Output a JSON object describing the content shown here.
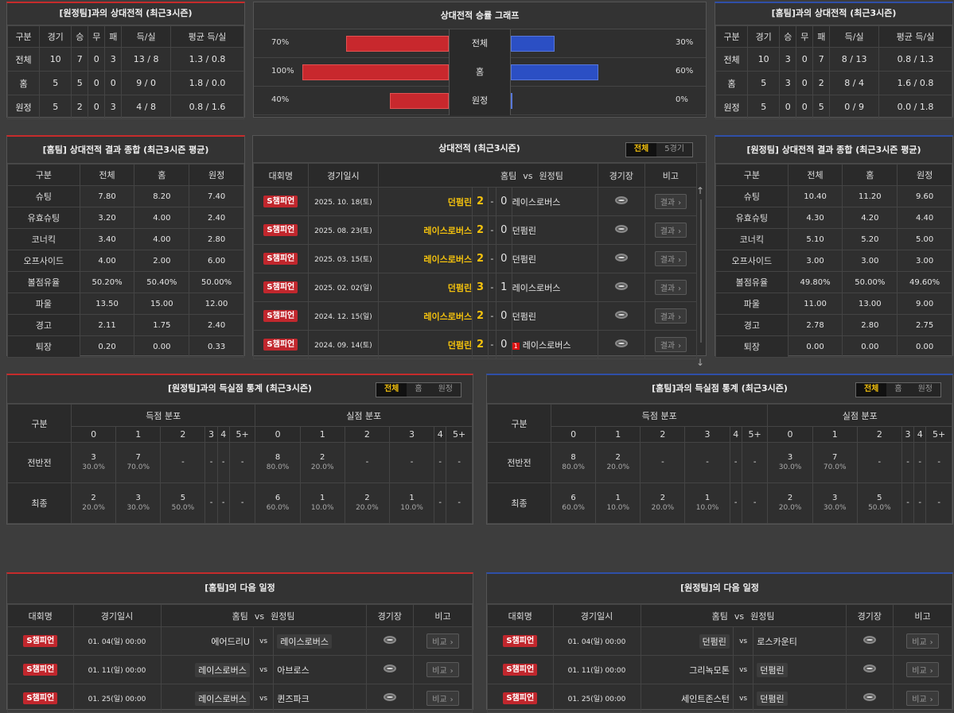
{
  "h2h_home": {
    "title": "[원정팀]과의 상대전적 (최근3시즌)",
    "headers": [
      "구분",
      "경기",
      "승",
      "무",
      "패",
      "득/실",
      "평균 득/실"
    ],
    "rows": [
      [
        "전체",
        "10",
        "7",
        "0",
        "3",
        "13 / 8",
        "1.3 / 0.8"
      ],
      [
        "홈",
        "5",
        "5",
        "0",
        "0",
        "9 / 0",
        "1.8 / 0.0"
      ],
      [
        "원정",
        "5",
        "2",
        "0",
        "3",
        "4 / 8",
        "0.8 / 1.6"
      ]
    ]
  },
  "graph": {
    "title": "상대전적 승률 그래프",
    "rows": [
      {
        "label": "전체",
        "home_pct": "70%",
        "away_pct": "30%",
        "home": 70,
        "away": 30
      },
      {
        "label": "홈",
        "home_pct": "100%",
        "away_pct": "60%",
        "home": 100,
        "away": 60
      },
      {
        "label": "원정",
        "home_pct": "40%",
        "away_pct": "0%",
        "home": 40,
        "away": 0
      }
    ]
  },
  "h2h_away": {
    "title": "[홈팀]과의 상대전적 (최근3시즌)",
    "headers": [
      "구분",
      "경기",
      "승",
      "무",
      "패",
      "득/실",
      "평균 득/실"
    ],
    "rows": [
      [
        "전체",
        "10",
        "3",
        "0",
        "7",
        "8 / 13",
        "0.8 / 1.3"
      ],
      [
        "홈",
        "5",
        "3",
        "0",
        "2",
        "8 / 4",
        "1.6 / 0.8"
      ],
      [
        "원정",
        "5",
        "0",
        "0",
        "5",
        "0 / 9",
        "0.0 / 1.8"
      ]
    ]
  },
  "sum_home": {
    "title": "[홈팀] 상대전적 결과 종합 (최근3시즌 평균)",
    "headers": [
      "구분",
      "전체",
      "홈",
      "원정"
    ],
    "rows": [
      [
        "슈팅",
        "7.80",
        "8.20",
        "7.40"
      ],
      [
        "유효슈팅",
        "3.20",
        "4.00",
        "2.40"
      ],
      [
        "코너킥",
        "3.40",
        "4.00",
        "2.80"
      ],
      [
        "오프사이드",
        "4.00",
        "2.00",
        "6.00"
      ],
      [
        "볼점유율",
        "50.20%",
        "50.40%",
        "50.00%"
      ],
      [
        "파울",
        "13.50",
        "15.00",
        "12.00"
      ],
      [
        "경고",
        "2.11",
        "1.75",
        "2.40"
      ],
      [
        "퇴장",
        "0.20",
        "0.00",
        "0.33"
      ]
    ]
  },
  "sum_away": {
    "title": "[원정팀] 상대전적 결과 종합 (최근3시즌 평균)",
    "headers": [
      "구분",
      "전체",
      "홈",
      "원정"
    ],
    "rows": [
      [
        "슈팅",
        "10.40",
        "11.20",
        "9.60"
      ],
      [
        "유효슈팅",
        "4.30",
        "4.20",
        "4.40"
      ],
      [
        "코너킥",
        "5.10",
        "5.20",
        "5.00"
      ],
      [
        "오프사이드",
        "3.00",
        "3.00",
        "3.00"
      ],
      [
        "볼점유율",
        "49.80%",
        "50.00%",
        "49.60%"
      ],
      [
        "파울",
        "11.00",
        "13.00",
        "9.00"
      ],
      [
        "경고",
        "2.78",
        "2.80",
        "2.75"
      ],
      [
        "퇴장",
        "0.00",
        "0.00",
        "0.00"
      ]
    ]
  },
  "matches": {
    "title": "상대전적 (최근3시즌)",
    "tab_all": "전체",
    "tab_5": "5경기",
    "headers": {
      "league": "대회명",
      "date": "경기일시",
      "home": "홈팀",
      "vs": "vs",
      "away": "원정팀",
      "stadium": "경기장",
      "note": "비고"
    },
    "result_label": "결과",
    "rows": [
      {
        "league": "S챔피언",
        "date": "2025. 10. 18(토)",
        "home": "던펌린",
        "hs": "2",
        "as": "0",
        "away": "레이스로버스",
        "card": ""
      },
      {
        "league": "S챔피언",
        "date": "2025. 08. 23(토)",
        "home": "레이스로버스",
        "hs": "2",
        "as": "0",
        "away": "던펌린",
        "card": ""
      },
      {
        "league": "S챔피언",
        "date": "2025. 03. 15(토)",
        "home": "레이스로버스",
        "hs": "2",
        "as": "0",
        "away": "던펌린",
        "card": ""
      },
      {
        "league": "S챔피언",
        "date": "2025. 02. 02(일)",
        "home": "던펌린",
        "hs": "3",
        "as": "1",
        "away": "레이스로버스",
        "card": ""
      },
      {
        "league": "S챔피언",
        "date": "2024. 12. 15(일)",
        "home": "레이스로버스",
        "hs": "2",
        "as": "0",
        "away": "던펌린",
        "card": ""
      },
      {
        "league": "S챔피언",
        "date": "2024. 09. 14(토)",
        "home": "던펌린",
        "hs": "2",
        "as": "0",
        "away": "레이스로버스",
        "card": "1"
      }
    ]
  },
  "goals_home": {
    "title": "[원정팀]과의 득실점 통계 (최근3시즌)",
    "tabs": [
      "전체",
      "홈",
      "원정"
    ],
    "col_label": "구분",
    "scored": "득점 분포",
    "conceded": "실점 분포",
    "buckets": [
      "0",
      "1",
      "2",
      "3",
      "4",
      "5+"
    ],
    "rows": [
      {
        "label": "전반전",
        "cells": [
          [
            "3",
            "30.0%"
          ],
          [
            "7",
            "70.0%"
          ],
          [
            "-",
            ""
          ],
          [
            "-",
            ""
          ],
          [
            "-",
            ""
          ],
          [
            "-",
            ""
          ],
          [
            "8",
            "80.0%"
          ],
          [
            "2",
            "20.0%"
          ],
          [
            "-",
            ""
          ],
          [
            "-",
            ""
          ],
          [
            "-",
            ""
          ],
          [
            "-",
            ""
          ]
        ]
      },
      {
        "label": "최종",
        "cells": [
          [
            "2",
            "20.0%"
          ],
          [
            "3",
            "30.0%"
          ],
          [
            "5",
            "50.0%"
          ],
          [
            "-",
            ""
          ],
          [
            "-",
            ""
          ],
          [
            "-",
            ""
          ],
          [
            "6",
            "60.0%"
          ],
          [
            "1",
            "10.0%"
          ],
          [
            "2",
            "20.0%"
          ],
          [
            "1",
            "10.0%"
          ],
          [
            "-",
            ""
          ],
          [
            "-",
            ""
          ]
        ]
      }
    ]
  },
  "goals_away": {
    "title": "[홈팀]과의 득실점 통계 (최근3시즌)",
    "tabs": [
      "전체",
      "홈",
      "원정"
    ],
    "col_label": "구분",
    "scored": "득점 분포",
    "conceded": "실점 분포",
    "buckets": [
      "0",
      "1",
      "2",
      "3",
      "4",
      "5+"
    ],
    "rows": [
      {
        "label": "전반전",
        "cells": [
          [
            "8",
            "80.0%"
          ],
          [
            "2",
            "20.0%"
          ],
          [
            "-",
            ""
          ],
          [
            "-",
            ""
          ],
          [
            "-",
            ""
          ],
          [
            "-",
            ""
          ],
          [
            "3",
            "30.0%"
          ],
          [
            "7",
            "70.0%"
          ],
          [
            "-",
            ""
          ],
          [
            "-",
            ""
          ],
          [
            "-",
            ""
          ],
          [
            "-",
            ""
          ]
        ]
      },
      {
        "label": "최종",
        "cells": [
          [
            "6",
            "60.0%"
          ],
          [
            "1",
            "10.0%"
          ],
          [
            "2",
            "20.0%"
          ],
          [
            "1",
            "10.0%"
          ],
          [
            "-",
            ""
          ],
          [
            "-",
            ""
          ],
          [
            "2",
            "20.0%"
          ],
          [
            "3",
            "30.0%"
          ],
          [
            "5",
            "50.0%"
          ],
          [
            "-",
            ""
          ],
          [
            "-",
            ""
          ],
          [
            "-",
            ""
          ]
        ]
      }
    ]
  },
  "next_home": {
    "title": "[홈팀]의 다음 일정",
    "headers": [
      "대회명",
      "경기일시",
      "홈팀",
      "vs",
      "원정팀",
      "경기장",
      "비고"
    ],
    "btn": "비교",
    "rows": [
      {
        "league": "S챔피언",
        "date": "01. 04(일) 00:00",
        "home": "에어드리U",
        "away": "레이스로버스",
        "hl": "away"
      },
      {
        "league": "S챔피언",
        "date": "01. 11(일) 00:00",
        "home": "레이스로버스",
        "away": "아브로스",
        "hl": "home"
      },
      {
        "league": "S챔피언",
        "date": "01. 25(일) 00:00",
        "home": "레이스로버스",
        "away": "퀸즈파크",
        "hl": "home"
      }
    ]
  },
  "next_away": {
    "title": "[원정팀]의 다음 일정",
    "headers": [
      "대회명",
      "경기일시",
      "홈팀",
      "vs",
      "원정팀",
      "경기장",
      "비고"
    ],
    "btn": "비교",
    "rows": [
      {
        "league": "S챔피언",
        "date": "01. 04(일) 00:00",
        "home": "던펌린",
        "away": "로스카운티",
        "hl": "home"
      },
      {
        "league": "S챔피언",
        "date": "01. 11(일) 00:00",
        "home": "그리녹모톤",
        "away": "던펌린",
        "hl": "away"
      },
      {
        "league": "S챔피언",
        "date": "01. 25(일) 00:00",
        "home": "세인트존스턴",
        "away": "던펌린",
        "hl": "away"
      }
    ]
  }
}
